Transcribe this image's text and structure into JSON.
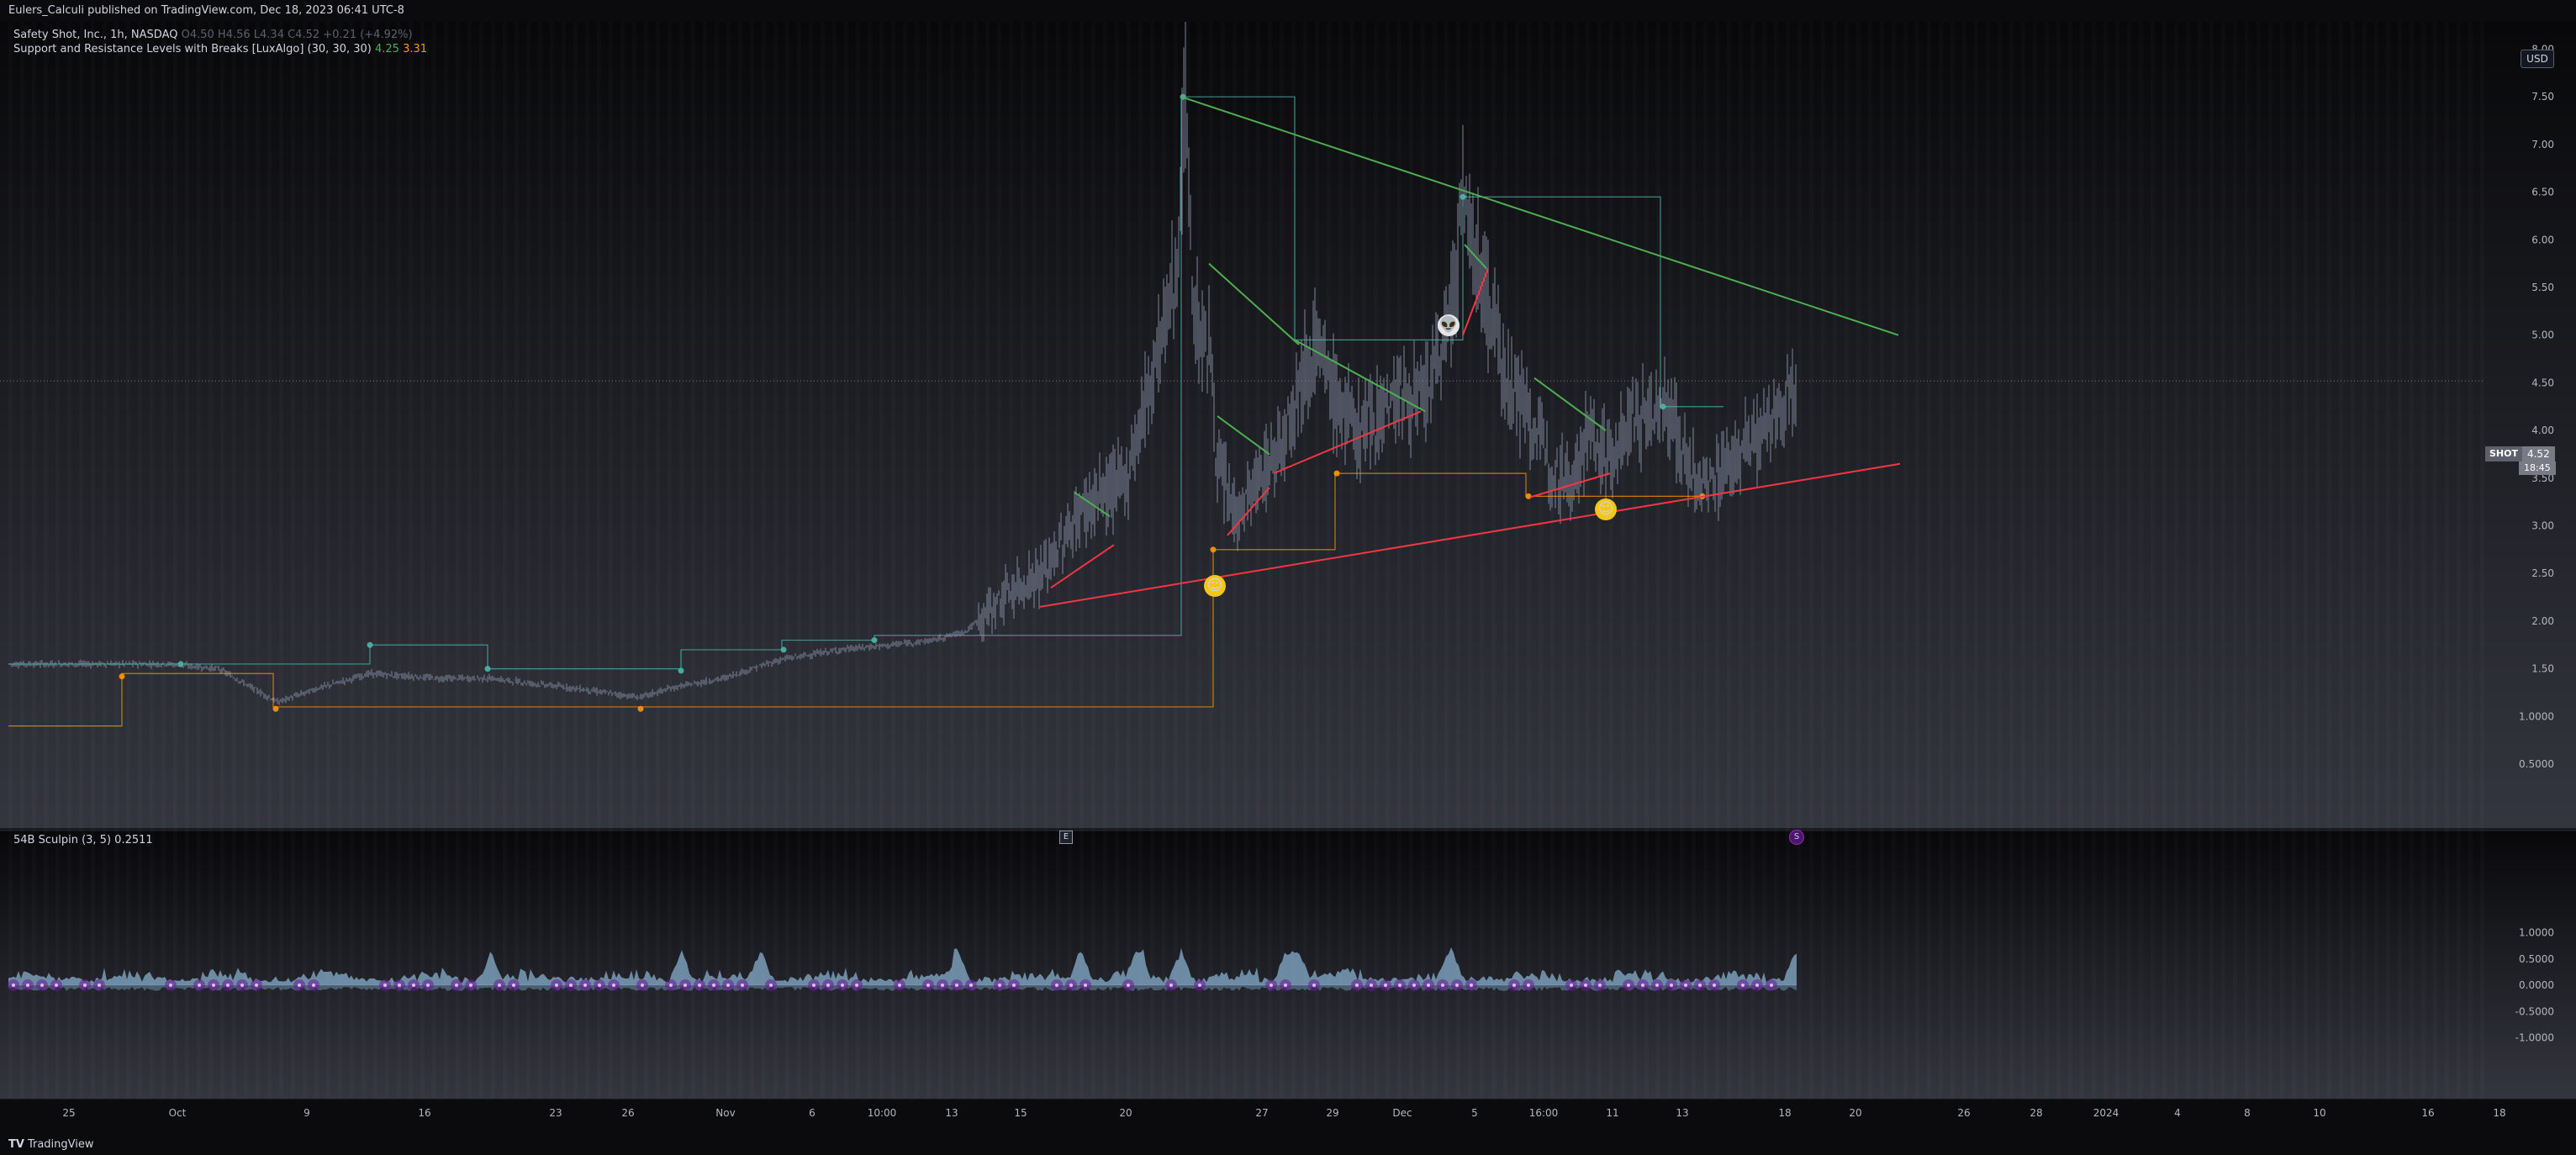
{
  "header": {
    "published": "Eulers_Calculi published on TradingView.com, Dec 18, 2023 06:41 UTC-8"
  },
  "main_legend": {
    "title": "Safety Shot, Inc., 1h, NASDAQ",
    "ohlc": "O4.50 H4.56 L4.34 C4.52 +0.21 (+4.92%)",
    "indicator": "Support and Resistance Levels with Breaks [LuxAlgo] (30, 30, 30)",
    "ind_val1": "4.25",
    "ind_val2": "3.31"
  },
  "sub_legend": {
    "name": "54B Sculpin (3, 5)",
    "value": "0.2511"
  },
  "currency": "USD",
  "symbol_tag": "SHOT",
  "last_price": "4.52",
  "countdown": "18:45",
  "earnings_label": "E",
  "split_label": "S",
  "footer": {
    "brand": "TradingView"
  },
  "colors": {
    "background": "#0c0c0e",
    "support": "#f23645",
    "resistance": "#4caf50",
    "candle": "#8f98b0",
    "osc_fill": "#8fb8d8",
    "dot_fill": "#6a1b9a"
  },
  "chart_data": [
    {
      "type": "line",
      "title": "Safety Shot, Inc., 1h, NASDAQ",
      "xlabel": "",
      "ylabel": "",
      "ylim": [
        0.35,
        8.6
      ],
      "y_ticks": [
        "0.5000",
        "1.0000",
        "1.50",
        "2.00",
        "2.50",
        "3.00",
        "3.50",
        "4.00",
        "4.50",
        "5.00",
        "5.50",
        "6.00",
        "6.50",
        "7.00",
        "7.50",
        "8.00"
      ],
      "x_tick_labels": [
        "25",
        "Oct",
        "9",
        "16",
        "23",
        "26",
        "Nov",
        "6",
        "10:00",
        "13",
        "15",
        "20",
        "27",
        "29",
        "Dec",
        "5",
        "16:00",
        "11",
        "13",
        "18",
        "20",
        "26",
        "28",
        "2024",
        "4",
        "8",
        "10",
        "16",
        "18"
      ],
      "approx_price_path": [
        {
          "x": "Sep 21",
          "y": 1.55
        },
        {
          "x": "Oct 2",
          "y": 1.55
        },
        {
          "x": "Oct 6",
          "y": 1.15
        },
        {
          "x": "Oct 11",
          "y": 1.4
        },
        {
          "x": "Oct 16",
          "y": 1.4
        },
        {
          "x": "Oct 24",
          "y": 1.2
        },
        {
          "x": "Oct 27",
          "y": 1.25
        },
        {
          "x": "Oct 31",
          "y": 1.4
        },
        {
          "x": "Nov 6",
          "y": 1.65
        },
        {
          "x": "Nov 10",
          "y": 1.7
        },
        {
          "x": "Nov 13",
          "y": 1.85
        },
        {
          "x": "Nov 15",
          "y": 2.2
        },
        {
          "x": "Nov 20",
          "y": 2.8
        },
        {
          "x": "Nov 21",
          "y": 3.7
        },
        {
          "x": "Nov 22",
          "y": 7.5
        },
        {
          "x": "Nov 24",
          "y": 4.0
        },
        {
          "x": "Nov 27",
          "y": 3.7
        },
        {
          "x": "Nov 28",
          "y": 4.9
        },
        {
          "x": "Nov 29",
          "y": 4.2
        },
        {
          "x": "Dec 1",
          "y": 4.6
        },
        {
          "x": "Dec 4",
          "y": 6.4
        },
        {
          "x": "Dec 6",
          "y": 4.4
        },
        {
          "x": "Dec 8",
          "y": 3.6
        },
        {
          "x": "Dec 11",
          "y": 4.2
        },
        {
          "x": "Dec 13",
          "y": 3.4
        },
        {
          "x": "Dec 15",
          "y": 4.0
        },
        {
          "x": "Dec 18",
          "y": 4.52
        }
      ],
      "trendlines": [
        {
          "name": "resistance",
          "from": {
            "x": "Nov 22",
            "y": 7.5
          },
          "to": {
            "x": "Dec 22",
            "y": 5.0
          }
        },
        {
          "name": "support",
          "from": {
            "x": "Nov 16",
            "y": 2.15
          },
          "to": {
            "x": "Dec 22",
            "y": 3.65
          }
        }
      ]
    },
    {
      "type": "area",
      "title": "54B Sculpin (3, 5)",
      "ylim": [
        -1.1,
        1.3
      ],
      "y_ticks": [
        "1.0000",
        "0.5000",
        "0.0000",
        "-0.5000",
        "-1.0000"
      ],
      "last_value": 0.2511
    }
  ]
}
